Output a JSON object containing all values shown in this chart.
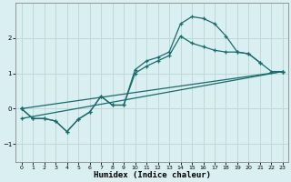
{
  "title": "",
  "xlabel": "Humidex (Indice chaleur)",
  "background_color": "#d9eff1",
  "grid_color": "#c0d8d8",
  "line_color": "#1a6b6b",
  "xlim": [
    -0.5,
    23.5
  ],
  "ylim": [
    -1.5,
    3.0
  ],
  "yticks": [
    -1,
    0,
    1,
    2
  ],
  "xticks": [
    0,
    1,
    2,
    3,
    4,
    5,
    6,
    7,
    8,
    9,
    10,
    11,
    12,
    13,
    14,
    15,
    16,
    17,
    18,
    19,
    20,
    21,
    22,
    23
  ],
  "series1_x": [
    0,
    1,
    2,
    3,
    4,
    5,
    6,
    7,
    8,
    9,
    10,
    11,
    12,
    13,
    14,
    15,
    16,
    17,
    18,
    19,
    20,
    21
  ],
  "series1_y": [
    0.0,
    -0.28,
    -0.28,
    -0.35,
    -0.65,
    -0.3,
    -0.1,
    0.35,
    0.1,
    0.1,
    1.1,
    1.35,
    1.45,
    1.6,
    2.4,
    2.6,
    2.55,
    2.4,
    2.05,
    1.6,
    1.55,
    1.3
  ],
  "series2_x": [
    0,
    1,
    2,
    3,
    4,
    5,
    6,
    7,
    8,
    9,
    10,
    11,
    12,
    13,
    14,
    15,
    16,
    17,
    18,
    19,
    20,
    21,
    22,
    23
  ],
  "series2_y": [
    0.0,
    -0.28,
    -0.28,
    -0.35,
    -0.65,
    -0.3,
    -0.1,
    0.35,
    0.1,
    0.1,
    1.0,
    1.2,
    1.35,
    1.5,
    2.05,
    1.85,
    1.75,
    1.65,
    1.6,
    1.6,
    1.55,
    1.3,
    1.05,
    1.05
  ],
  "series3_x": [
    0,
    23
  ],
  "series3_y": [
    0.0,
    1.05
  ],
  "series4_x": [
    0,
    23
  ],
  "series4_y": [
    -0.28,
    1.05
  ]
}
